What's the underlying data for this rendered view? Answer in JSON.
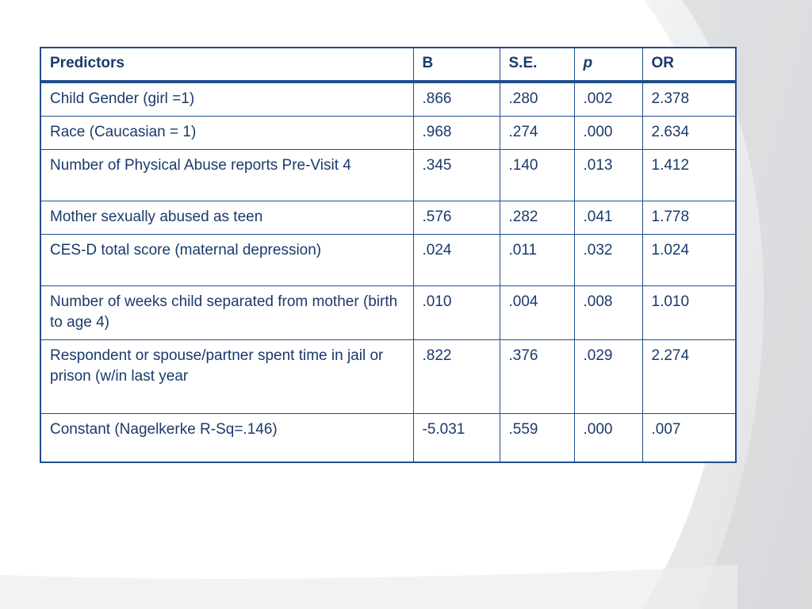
{
  "table": {
    "headers": [
      "Predictors",
      "B",
      "S.E.",
      "p",
      "OR"
    ],
    "rows": [
      [
        "Child Gender (girl =1)",
        ".866",
        ".280",
        ".002",
        "2.378"
      ],
      [
        "Race (Caucasian = 1)",
        ".968",
        ".274",
        ".000",
        "2.634"
      ],
      [
        "Number of Physical Abuse reports Pre-Visit 4",
        ".345",
        ".140",
        ".013",
        "1.412"
      ],
      [
        "Mother sexually abused as teen",
        ".576",
        ".282",
        ".041",
        "1.778"
      ],
      [
        "CES-D total score (maternal depression)",
        ".024",
        ".011",
        ".032",
        "1.024"
      ],
      [
        "Number of weeks child separated from mother (birth to age 4)",
        ".010",
        ".004",
        ".008",
        "1.010"
      ],
      [
        "Respondent or spouse/partner spent time in jail or prison (w/in last year",
        ".822",
        ".376",
        ".029",
        "2.274"
      ],
      [
        "Constant (Nagelkerke R-Sq=.146)",
        "-5.031",
        ".559",
        ".000",
        ".007"
      ]
    ]
  },
  "colors": {
    "border": "#1f4e8c",
    "text": "#1b3a6b",
    "background": "#ffffff",
    "decor_swoosh": "#e6e7e9"
  }
}
